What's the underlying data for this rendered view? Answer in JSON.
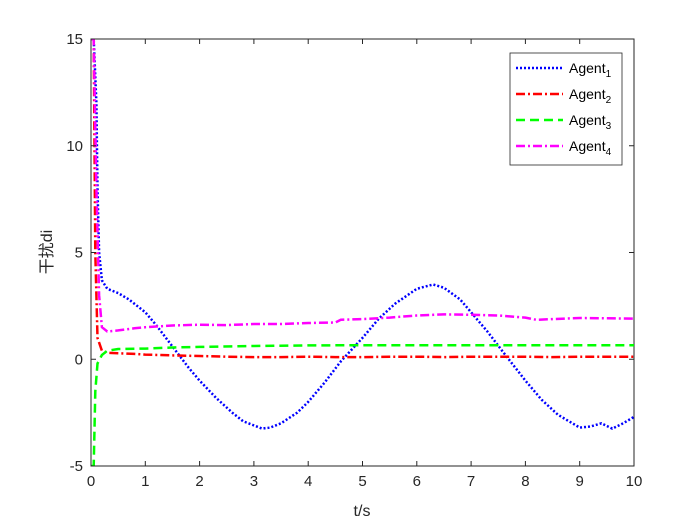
{
  "chart_data": {
    "type": "line",
    "title": "",
    "xlabel": "t/s",
    "ylabel": "干扰di",
    "xlim": [
      0,
      10
    ],
    "ylim": [
      -5,
      15
    ],
    "x_ticks": [
      "0",
      "1",
      "2",
      "3",
      "4",
      "5",
      "6",
      "7",
      "8",
      "9",
      "10"
    ],
    "y_ticks": [
      "-5",
      "0",
      "5",
      "10",
      "15"
    ],
    "grid": false,
    "legend_position": "top-right",
    "series": [
      {
        "name": "Agent",
        "subscript": "1",
        "color": "#0000ff",
        "style": "dotted",
        "x": [
          0.0,
          0.05,
          0.1,
          0.12,
          0.15,
          0.2,
          0.3,
          0.5,
          0.7,
          1.0,
          1.2,
          1.5,
          1.8,
          2.0,
          2.3,
          2.6,
          2.8,
          3.0,
          3.15,
          3.3,
          3.5,
          3.8,
          4.0,
          4.3,
          4.6,
          5.0,
          5.3,
          5.6,
          6.0,
          6.3,
          6.5,
          6.8,
          7.0,
          7.3,
          7.6,
          8.0,
          8.3,
          8.6,
          9.0,
          9.2,
          9.4,
          9.6,
          9.8,
          10.0
        ],
        "y": [
          15.0,
          15.0,
          12.0,
          8.0,
          5.0,
          3.7,
          3.3,
          3.1,
          2.8,
          2.2,
          1.6,
          0.6,
          -0.4,
          -1.0,
          -1.8,
          -2.5,
          -2.9,
          -3.1,
          -3.25,
          -3.2,
          -3.0,
          -2.5,
          -2.0,
          -1.1,
          -0.1,
          1.0,
          1.9,
          2.6,
          3.3,
          3.5,
          3.35,
          2.8,
          2.2,
          1.3,
          0.3,
          -1.0,
          -1.9,
          -2.6,
          -3.2,
          -3.15,
          -3.0,
          -3.25,
          -3.0,
          -2.7
        ]
      },
      {
        "name": "Agent",
        "subscript": "2",
        "color": "#ff0000",
        "style": "dashdot",
        "x": [
          0.0,
          0.05,
          0.08,
          0.12,
          0.2,
          0.3,
          0.5,
          0.8,
          1.0,
          1.5,
          2.0,
          2.5,
          3.0,
          3.5,
          4.0,
          4.5,
          5.0,
          5.5,
          6.0,
          6.5,
          7.0,
          7.5,
          8.0,
          8.5,
          9.0,
          9.5,
          10.0
        ],
        "y": [
          15.0,
          15.0,
          5.0,
          1.0,
          0.4,
          0.3,
          0.28,
          0.25,
          0.22,
          0.18,
          0.15,
          0.12,
          0.1,
          0.1,
          0.12,
          0.1,
          0.1,
          0.12,
          0.12,
          0.1,
          0.12,
          0.12,
          0.12,
          0.1,
          0.12,
          0.12,
          0.12
        ]
      },
      {
        "name": "Agent",
        "subscript": "3",
        "color": "#00ff00",
        "style": "dashed",
        "x": [
          0.0,
          0.05,
          0.08,
          0.12,
          0.2,
          0.3,
          0.5,
          1.0,
          1.5,
          2.0,
          3.0,
          4.0,
          5.0,
          6.0,
          7.0,
          8.0,
          9.0,
          10.0
        ],
        "y": [
          -5.0,
          -5.0,
          -1.5,
          -0.2,
          0.2,
          0.4,
          0.48,
          0.5,
          0.55,
          0.58,
          0.62,
          0.65,
          0.66,
          0.66,
          0.66,
          0.66,
          0.66,
          0.66
        ]
      },
      {
        "name": "Agent",
        "subscript": "4",
        "color": "#ff00ff",
        "style": "dashdot",
        "x": [
          0.0,
          0.05,
          0.1,
          0.15,
          0.2,
          0.3,
          0.5,
          0.8,
          1.0,
          1.5,
          2.0,
          2.5,
          3.0,
          3.5,
          4.0,
          4.5,
          4.6,
          5.0,
          5.5,
          6.0,
          6.5,
          7.0,
          7.5,
          8.0,
          8.2,
          8.5,
          9.0,
          9.5,
          10.0
        ],
        "y": [
          15.0,
          15.0,
          8.0,
          3.0,
          1.5,
          1.3,
          1.35,
          1.45,
          1.5,
          1.58,
          1.62,
          1.6,
          1.65,
          1.65,
          1.7,
          1.72,
          1.85,
          1.88,
          1.95,
          2.05,
          2.1,
          2.08,
          2.05,
          1.95,
          1.85,
          1.88,
          1.93,
          1.92,
          1.9
        ]
      }
    ]
  }
}
